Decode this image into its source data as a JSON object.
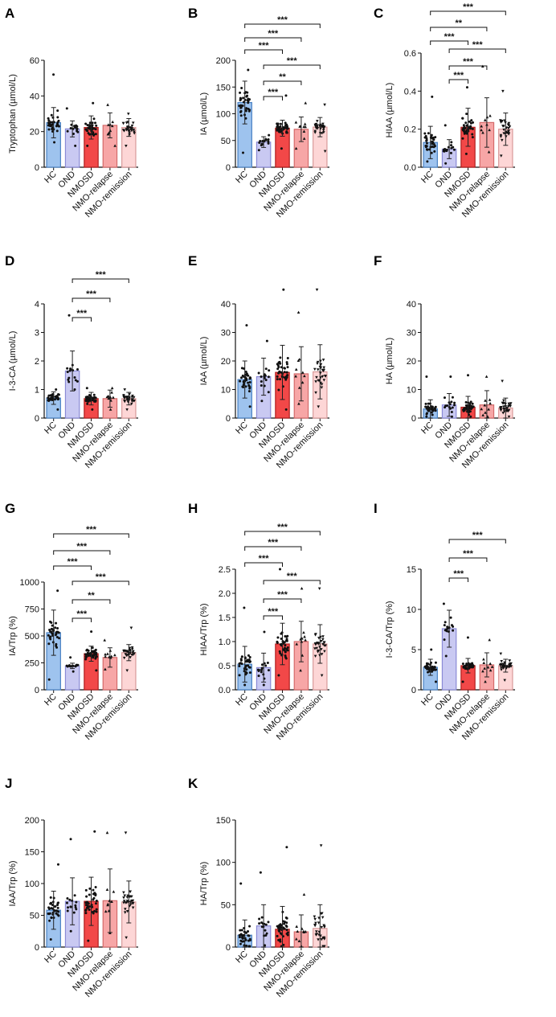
{
  "categories": [
    "HC",
    "OND",
    "NMOSD",
    "NMO-relapse",
    "NMO-remission"
  ],
  "colors": {
    "bars": [
      "#9ec3ee",
      "#c9c9f2",
      "#f24848",
      "#f7a6a6",
      "#fdd6d6"
    ],
    "edges": [
      "#4a82c4",
      "#8a8ad6",
      "#b01e1e",
      "#d46a6a",
      "#d89a9a"
    ],
    "dots": "#111111",
    "brackets": "#111111"
  },
  "chart_data": [
    {
      "type": "bar",
      "label": "A",
      "ylabel": "Tryptophan (µmol/L)",
      "ylim": [
        0,
        60
      ],
      "yticks": [
        0,
        20,
        40,
        60
      ],
      "categories": [
        "HC",
        "OND",
        "NMOSD",
        "NMO-relapse",
        "NMO-remission"
      ],
      "values": [
        25,
        21.5,
        22.3,
        23.5,
        22.3
      ],
      "errors": [
        8.5,
        4.5,
        6.5,
        7,
        5
      ],
      "n": [
        36,
        16,
        40,
        10,
        30
      ],
      "dot_max": [
        52,
        33,
        36,
        35,
        30
      ],
      "dot_min": [
        14,
        12,
        12,
        12,
        12
      ],
      "markers": [
        "circle",
        "circle",
        "circle",
        "triangle",
        "triangle-down"
      ],
      "significance": []
    },
    {
      "type": "bar",
      "label": "B",
      "ylabel": "IA (µmol/L)",
      "ylim": [
        0,
        200
      ],
      "yticks": [
        0,
        50,
        100,
        150,
        200
      ],
      "categories": [
        "HC",
        "OND",
        "NMOSD",
        "NMO-relapse",
        "NMO-remission"
      ],
      "values": [
        121,
        47,
        73,
        71,
        75
      ],
      "errors": [
        40,
        10,
        15,
        23,
        18
      ],
      "n": [
        36,
        16,
        40,
        10,
        30
      ],
      "dot_max": [
        182,
        60,
        134,
        120,
        117
      ],
      "dot_min": [
        27,
        32,
        35,
        35,
        30
      ],
      "markers": [
        "circle",
        "circle",
        "circle",
        "triangle",
        "triangle-down"
      ],
      "significance": [
        {
          "from": 0,
          "to": 4,
          "text": "***"
        },
        {
          "from": 0,
          "to": 3,
          "text": "***"
        },
        {
          "from": 0,
          "to": 2,
          "text": "***"
        },
        {
          "from": 1,
          "to": 4,
          "text": "***"
        },
        {
          "from": 1,
          "to": 3,
          "text": "**"
        },
        {
          "from": 1,
          "to": 2,
          "text": "***"
        }
      ]
    },
    {
      "type": "bar",
      "label": "C",
      "ylabel": "HIAA (µmol/L)",
      "ylim": [
        0,
        0.6
      ],
      "yticks": [
        0.0,
        0.2,
        0.4,
        0.6
      ],
      "categories": [
        "HC",
        "OND",
        "NMOSD",
        "NMO-relapse",
        "NMO-remission"
      ],
      "values": [
        0.13,
        0.095,
        0.21,
        0.235,
        0.2
      ],
      "errors": [
        0.085,
        0.05,
        0.1,
        0.13,
        0.085
      ],
      "n": [
        36,
        16,
        40,
        10,
        30
      ],
      "dot_max": [
        0.37,
        0.22,
        0.42,
        0.53,
        0.4
      ],
      "dot_min": [
        0.03,
        0.02,
        0.07,
        0.08,
        0.06
      ],
      "markers": [
        "circle",
        "circle",
        "circle",
        "triangle",
        "triangle-down"
      ],
      "significance": [
        {
          "from": 0,
          "to": 4,
          "text": "***"
        },
        {
          "from": 0,
          "to": 3,
          "text": "**"
        },
        {
          "from": 0,
          "to": 2,
          "text": "***"
        },
        {
          "from": 1,
          "to": 4,
          "text": "***"
        },
        {
          "from": 1,
          "to": 3,
          "text": "***"
        },
        {
          "from": 1,
          "to": 2,
          "text": "***"
        }
      ]
    },
    {
      "type": "bar",
      "label": "D",
      "ylabel": "I-3-CA (µmol/L)",
      "ylim": [
        0,
        4
      ],
      "yticks": [
        0,
        1,
        2,
        3,
        4
      ],
      "categories": [
        "HC",
        "OND",
        "NMOSD",
        "NMO-relapse",
        "NMO-remission"
      ],
      "values": [
        0.7,
        1.65,
        0.68,
        0.68,
        0.68
      ],
      "errors": [
        0.22,
        0.7,
        0.22,
        0.3,
        0.22
      ],
      "n": [
        36,
        16,
        40,
        10,
        30
      ],
      "dot_max": [
        1.0,
        3.6,
        1.05,
        1.05,
        1.0
      ],
      "dot_min": [
        0.3,
        1.0,
        0.3,
        0.3,
        0.3
      ],
      "markers": [
        "circle",
        "circle",
        "circle",
        "triangle",
        "triangle-down"
      ],
      "significance": [
        {
          "from": 1,
          "to": 4,
          "text": "***"
        },
        {
          "from": 1,
          "to": 3,
          "text": "***"
        },
        {
          "from": 1,
          "to": 2,
          "text": "***"
        }
      ]
    },
    {
      "type": "bar",
      "label": "E",
      "ylabel": "IAA (µmol/L)",
      "ylim": [
        0,
        40
      ],
      "yticks": [
        0,
        10,
        20,
        30,
        40
      ],
      "categories": [
        "HC",
        "OND",
        "NMOSD",
        "NMO-relapse",
        "NMO-remission"
      ],
      "values": [
        13.5,
        14.5,
        16,
        15.5,
        16.2
      ],
      "errors": [
        6.5,
        6.5,
        9.5,
        9.5,
        9.5
      ],
      "n": [
        36,
        16,
        40,
        10,
        30
      ],
      "dot_max": [
        32.5,
        27,
        45,
        37,
        45
      ],
      "dot_min": [
        4,
        6,
        3,
        5,
        4
      ],
      "markers": [
        "circle",
        "circle",
        "circle",
        "triangle",
        "triangle-down"
      ],
      "significance": []
    },
    {
      "type": "bar",
      "label": "F",
      "ylabel": "HA (µmol/L)",
      "ylim": [
        0,
        40
      ],
      "yticks": [
        0,
        10,
        20,
        30,
        40
      ],
      "categories": [
        "HC",
        "OND",
        "NMOSD",
        "NMO-relapse",
        "NMO-remission"
      ],
      "values": [
        3.2,
        4.6,
        3.8,
        4.6,
        3.5
      ],
      "errors": [
        3.2,
        4,
        3.8,
        5,
        3.5
      ],
      "n": [
        36,
        16,
        40,
        10,
        30
      ],
      "dot_max": [
        14.5,
        14.5,
        15,
        14.5,
        13
      ],
      "dot_min": [
        0.5,
        0.5,
        0.5,
        0.5,
        0.5
      ],
      "markers": [
        "circle",
        "circle",
        "circle",
        "triangle",
        "triangle-down"
      ],
      "significance": []
    },
    {
      "type": "bar",
      "label": "G",
      "ylabel": "IA/Trp (%)",
      "ylim": [
        0,
        1000
      ],
      "yticks": [
        0,
        250,
        500,
        750,
        1000
      ],
      "categories": [
        "HC",
        "OND",
        "NMOSD",
        "NMO-relapse",
        "NMO-remission"
      ],
      "values": [
        530,
        222,
        335,
        300,
        345
      ],
      "errors": [
        210,
        25,
        70,
        90,
        75
      ],
      "n": [
        36,
        16,
        40,
        10,
        30
      ],
      "dot_max": [
        920,
        300,
        540,
        460,
        575
      ],
      "dot_min": [
        95,
        170,
        180,
        190,
        180
      ],
      "markers": [
        "circle",
        "circle",
        "circle",
        "triangle",
        "triangle-down"
      ],
      "significance": [
        {
          "from": 0,
          "to": 4,
          "text": "***"
        },
        {
          "from": 0,
          "to": 3,
          "text": "***"
        },
        {
          "from": 0,
          "to": 2,
          "text": "***"
        },
        {
          "from": 1,
          "to": 4,
          "text": "***"
        },
        {
          "from": 1,
          "to": 3,
          "text": "**"
        },
        {
          "from": 1,
          "to": 2,
          "text": "***"
        }
      ]
    },
    {
      "type": "bar",
      "label": "H",
      "ylabel": "HIAA/Trp (%)",
      "ylim": [
        0,
        2.5
      ],
      "yticks": [
        0.0,
        0.5,
        1.0,
        1.5,
        2.0,
        2.5
      ],
      "categories": [
        "HC",
        "OND",
        "NMOSD",
        "NMO-relapse",
        "NMO-remission"
      ],
      "values": [
        0.53,
        0.46,
        0.95,
        1.0,
        0.95
      ],
      "errors": [
        0.37,
        0.3,
        0.43,
        0.42,
        0.4
      ],
      "n": [
        36,
        16,
        40,
        10,
        30
      ],
      "dot_max": [
        1.7,
        1.2,
        2.5,
        2.1,
        2.1
      ],
      "dot_min": [
        0.1,
        0.1,
        0.3,
        0.4,
        0.3
      ],
      "markers": [
        "circle",
        "circle",
        "circle",
        "triangle",
        "triangle-down"
      ],
      "significance": [
        {
          "from": 0,
          "to": 4,
          "text": "***"
        },
        {
          "from": 0,
          "to": 3,
          "text": "***"
        },
        {
          "from": 0,
          "to": 2,
          "text": "***"
        },
        {
          "from": 1,
          "to": 4,
          "text": "***"
        },
        {
          "from": 1,
          "to": 3,
          "text": "***"
        },
        {
          "from": 1,
          "to": 2,
          "text": "***"
        }
      ]
    },
    {
      "type": "bar",
      "label": "I",
      "ylabel": "I-3-CA/Trp (%)",
      "ylim": [
        0,
        15
      ],
      "yticks": [
        0,
        5,
        10,
        15
      ],
      "categories": [
        "HC",
        "OND",
        "NMOSD",
        "NMO-relapse",
        "NMO-remission"
      ],
      "values": [
        2.8,
        7.6,
        3.0,
        3.1,
        3.0
      ],
      "errors": [
        1.0,
        2.3,
        0.9,
        1.5,
        0.8
      ],
      "n": [
        36,
        16,
        40,
        10,
        30
      ],
      "dot_max": [
        5,
        10.7,
        6.5,
        6.2,
        4.5
      ],
      "dot_min": [
        1,
        4.2,
        1,
        1,
        1.2
      ],
      "markers": [
        "circle",
        "circle",
        "circle",
        "triangle",
        "triangle-down"
      ],
      "significance": [
        {
          "from": 1,
          "to": 4,
          "text": "***"
        },
        {
          "from": 1,
          "to": 3,
          "text": "***"
        },
        {
          "from": 1,
          "to": 2,
          "text": "***"
        }
      ]
    },
    {
      "type": "bar",
      "label": "J",
      "ylabel": "IAA/Trp (%)",
      "ylim": [
        0,
        200
      ],
      "yticks": [
        0,
        50,
        100,
        150,
        200
      ],
      "categories": [
        "HC",
        "OND",
        "NMOSD",
        "NMO-relapse",
        "NMO-remission"
      ],
      "values": [
        58,
        72,
        72,
        73,
        71
      ],
      "errors": [
        30,
        37,
        38,
        50,
        33
      ],
      "n": [
        36,
        16,
        40,
        10,
        30
      ],
      "dot_max": [
        130,
        170,
        182,
        180,
        180
      ],
      "dot_min": [
        12,
        25,
        10,
        22,
        15
      ],
      "markers": [
        "circle",
        "circle",
        "circle",
        "triangle",
        "triangle-down"
      ],
      "significance": []
    },
    {
      "type": "bar",
      "label": "K",
      "ylabel": "HA/Trp (%)",
      "ylim": [
        0,
        150
      ],
      "yticks": [
        0,
        50,
        100,
        150
      ],
      "categories": [
        "HC",
        "OND",
        "NMOSD",
        "NMO-relapse",
        "NMO-remission"
      ],
      "values": [
        14,
        25,
        21,
        18,
        22
      ],
      "errors": [
        18,
        25,
        27,
        20,
        28
      ],
      "n": [
        36,
        16,
        40,
        10,
        30
      ],
      "dot_max": [
        75,
        88,
        118,
        62,
        120
      ],
      "dot_min": [
        1,
        2,
        1,
        1,
        1
      ],
      "markers": [
        "circle",
        "circle",
        "circle",
        "triangle",
        "triangle-down"
      ],
      "significance": []
    }
  ]
}
